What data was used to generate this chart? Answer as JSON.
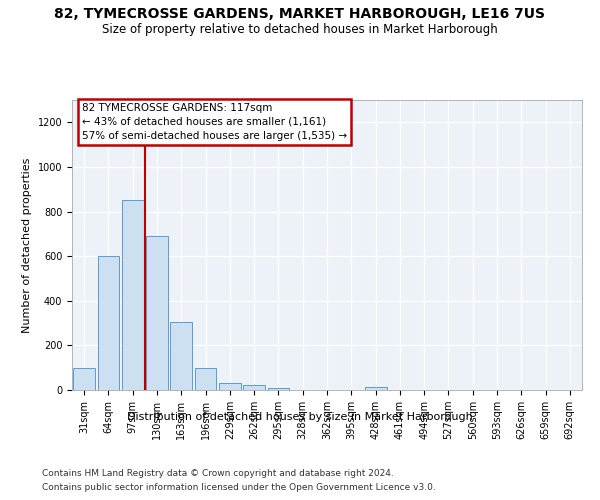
{
  "title": "82, TYMECROSSE GARDENS, MARKET HARBOROUGH, LE16 7US",
  "subtitle": "Size of property relative to detached houses in Market Harborough",
  "xlabel": "Distribution of detached houses by size in Market Harborough",
  "ylabel": "Number of detached properties",
  "footnote1": "Contains HM Land Registry data © Crown copyright and database right 2024.",
  "footnote2": "Contains public sector information licensed under the Open Government Licence v3.0.",
  "categories": [
    "31sqm",
    "64sqm",
    "97sqm",
    "130sqm",
    "163sqm",
    "196sqm",
    "229sqm",
    "262sqm",
    "295sqm",
    "328sqm",
    "362sqm",
    "395sqm",
    "428sqm",
    "461sqm",
    "494sqm",
    "527sqm",
    "560sqm",
    "593sqm",
    "626sqm",
    "659sqm",
    "692sqm"
  ],
  "bar_values": [
    100,
    600,
    850,
    690,
    305,
    100,
    30,
    22,
    10,
    0,
    0,
    0,
    15,
    0,
    0,
    0,
    0,
    0,
    0,
    0,
    0
  ],
  "bar_color": "#cde0f1",
  "bar_edge_color": "#5b9bd5",
  "vline_color": "#c00000",
  "vline_x": 2.5,
  "annotation_text": "82 TYMECROSSE GARDENS: 117sqm\n← 43% of detached houses are smaller (1,161)\n57% of semi-detached houses are larger (1,535) →",
  "annotation_box_edgecolor": "#c00000",
  "bg_color": "#edf2f9",
  "grid_color": "#ffffff",
  "ylim": [
    0,
    1300
  ],
  "yticks": [
    0,
    200,
    400,
    600,
    800,
    1000,
    1200
  ],
  "title_fontsize": 10,
  "subtitle_fontsize": 8.5,
  "xlabel_fontsize": 8,
  "ylabel_fontsize": 8,
  "tick_fontsize": 7,
  "annotation_fontsize": 7.5,
  "footnote_fontsize": 6.5
}
